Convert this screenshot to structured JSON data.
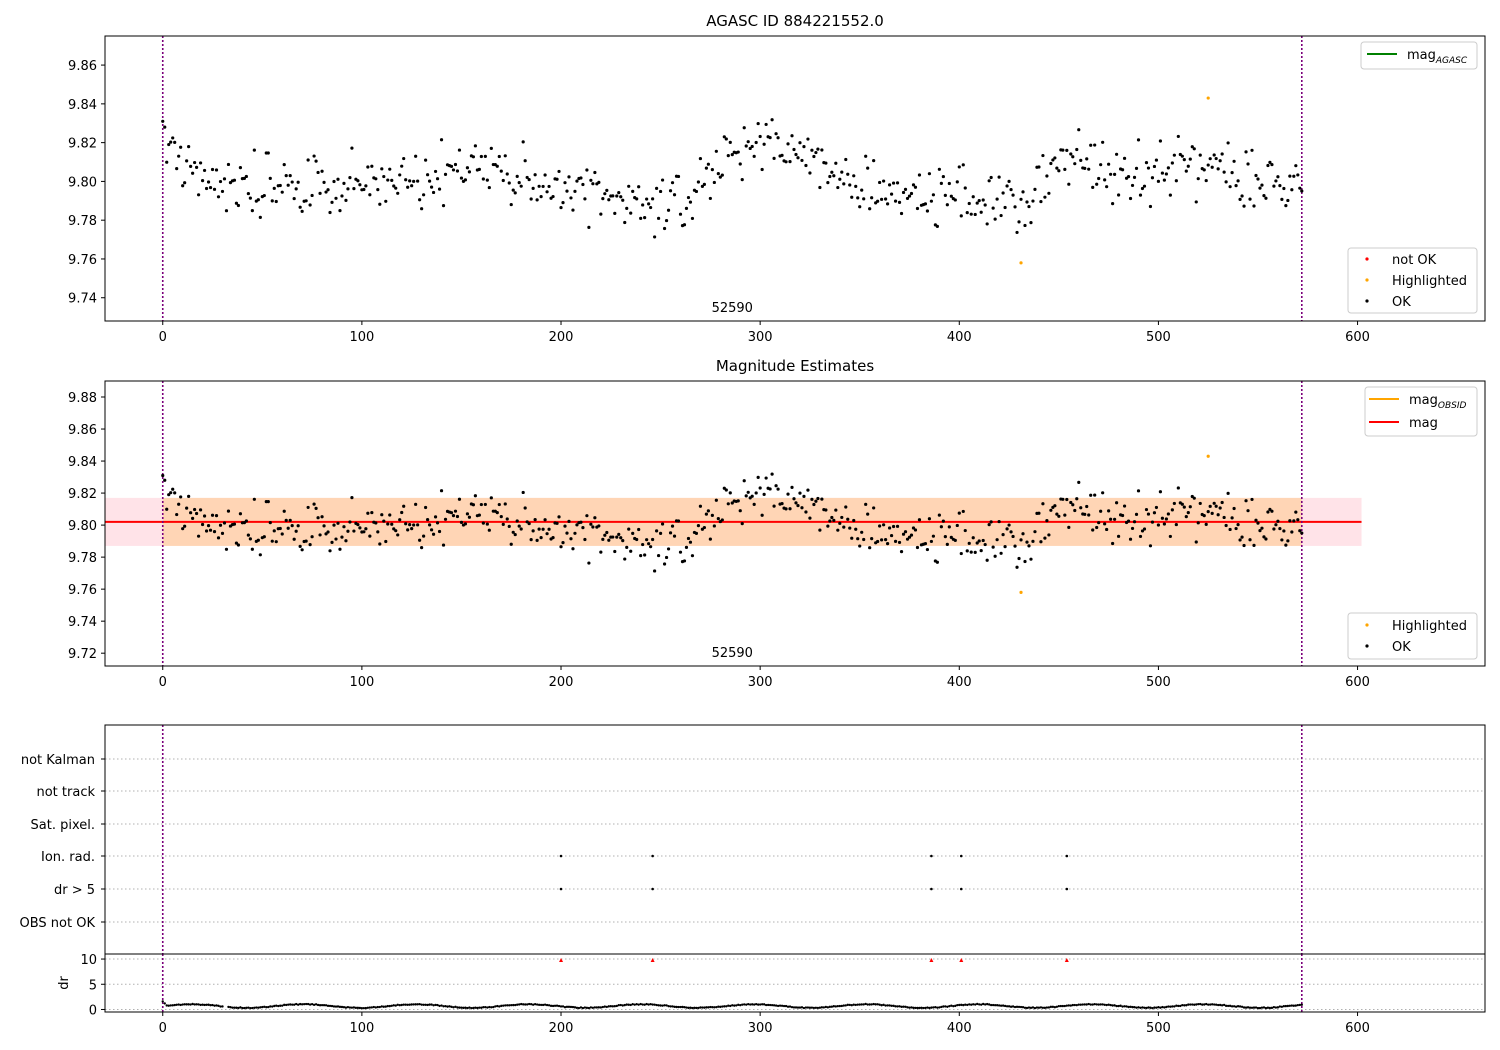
{
  "chart_data": [
    {
      "type": "scatter",
      "title": "AGASC ID 884221552.0",
      "xlim": [
        -29,
        664
      ],
      "ylim": [
        9.728,
        9.875
      ],
      "xticks": [
        0,
        100,
        200,
        300,
        400,
        500,
        600
      ],
      "yticks": [
        9.74,
        9.76,
        9.78,
        9.8,
        9.82,
        9.84,
        9.86
      ],
      "yticklabels": [
        "9.74",
        "9.76",
        "9.78",
        "9.80",
        "9.82",
        "9.84",
        "9.86"
      ],
      "vlines": [
        0,
        572
      ],
      "annotation": {
        "text": "52590",
        "x": 286
      },
      "legend_lines": [
        {
          "label": "mag",
          "sub": "AGASC",
          "color": "#008000"
        }
      ],
      "legend_markers": [
        {
          "label": "not OK",
          "color": "#ff0000"
        },
        {
          "label": "Highlighted",
          "color": "#ffa500"
        },
        {
          "label": "OK",
          "color": "#000000"
        }
      ],
      "highlighted": [
        [
          431,
          9.758
        ],
        [
          525,
          9.843
        ]
      ]
    },
    {
      "type": "scatter",
      "title": "Magnitude Estimates",
      "xlim": [
        -29,
        664
      ],
      "ylim": [
        9.712,
        9.89
      ],
      "xticks": [
        0,
        100,
        200,
        300,
        400,
        500,
        600
      ],
      "yticks": [
        9.72,
        9.74,
        9.76,
        9.78,
        9.8,
        9.82,
        9.84,
        9.86,
        9.88
      ],
      "yticklabels": [
        "9.72",
        "9.74",
        "9.76",
        "9.78",
        "9.80",
        "9.82",
        "9.84",
        "9.86",
        "9.88"
      ],
      "vlines": [
        0,
        572
      ],
      "annotation": {
        "text": "52590",
        "x": 286
      },
      "mag_line": 9.802,
      "band_x": [
        -29,
        602
      ],
      "band_y": [
        9.787,
        9.817
      ],
      "band_inner_x": [
        0,
        572
      ],
      "legend_lines": [
        {
          "label": "mag",
          "sub": "OBSID",
          "color": "#ffa500"
        },
        {
          "label": "mag",
          "sub": "",
          "color": "#ff0000"
        }
      ],
      "legend_markers": [
        {
          "label": "Highlighted",
          "color": "#ffa500"
        },
        {
          "label": "OK",
          "color": "#000000"
        }
      ],
      "highlighted": [
        [
          431,
          9.758
        ],
        [
          525,
          9.843
        ]
      ]
    },
    {
      "type": "scatter",
      "xlim": [
        -29,
        664
      ],
      "categories": [
        "not Kalman",
        "not track",
        "Sat. pixel.",
        "Ion. rad.",
        "dr > 5",
        "OBS not OK"
      ],
      "flags": {
        "Ion. rad.": [
          200,
          246,
          386,
          401,
          454
        ],
        "dr > 5": [
          200,
          246,
          386,
          401,
          454
        ]
      },
      "vlines": [
        0,
        572
      ]
    },
    {
      "type": "line",
      "ylabel": "dr",
      "xlim": [
        -29,
        664
      ],
      "ylim": [
        -0.5,
        11
      ],
      "xticks": [
        0,
        100,
        200,
        300,
        400,
        500,
        600
      ],
      "yticks": [
        0,
        5,
        10
      ],
      "yticklabels": [
        "0",
        "5",
        "10"
      ],
      "high_dr": [
        200,
        246,
        386,
        401,
        454
      ],
      "vlines": [
        0,
        572
      ]
    }
  ]
}
